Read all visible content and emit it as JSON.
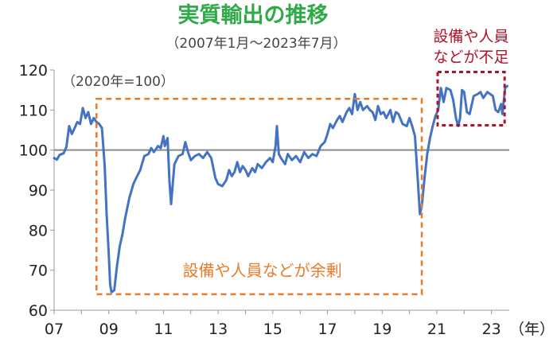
{
  "chart_data": {
    "type": "line",
    "title": "実質輸出の推移",
    "subtitle": "（2007年1月～2023年7月）",
    "base_note": "（2020年=100）",
    "xlabel": "（年）",
    "ylabel": "",
    "ylim": [
      60,
      120
    ],
    "xlim": [
      2007.0,
      2023.65
    ],
    "y_ticks": [
      "60",
      "70",
      "80",
      "90",
      "100",
      "110",
      "120"
    ],
    "x_ticks": [
      "07",
      "09",
      "11",
      "13",
      "15",
      "17",
      "19",
      "21",
      "23"
    ],
    "reference_line": 100,
    "grid": false,
    "legend": "none",
    "series": [
      {
        "color": "#4472c4",
        "points": [
          [
            2007.0,
            98.0
          ],
          [
            2007.1,
            97.6
          ],
          [
            2007.2,
            98.8
          ],
          [
            2007.35,
            99.2
          ],
          [
            2007.45,
            100.8
          ],
          [
            2007.55,
            106.0
          ],
          [
            2007.65,
            104.0
          ],
          [
            2007.75,
            105.5
          ],
          [
            2007.85,
            107.0
          ],
          [
            2007.95,
            106.5
          ],
          [
            2008.05,
            110.5
          ],
          [
            2008.15,
            108.0
          ],
          [
            2008.25,
            109.5
          ],
          [
            2008.35,
            106.5
          ],
          [
            2008.45,
            108.0
          ],
          [
            2008.55,
            107.0
          ],
          [
            2008.65,
            106.5
          ],
          [
            2008.75,
            105.5
          ],
          [
            2008.85,
            96.0
          ],
          [
            2008.92,
            84.0
          ],
          [
            2009.0,
            74.0
          ],
          [
            2009.05,
            66.5
          ],
          [
            2009.1,
            64.5
          ],
          [
            2009.2,
            65.0
          ],
          [
            2009.3,
            71.0
          ],
          [
            2009.4,
            76.0
          ],
          [
            2009.5,
            79.0
          ],
          [
            2009.6,
            83.0
          ],
          [
            2009.75,
            88.0
          ],
          [
            2009.9,
            91.5
          ],
          [
            2010.0,
            93.0
          ],
          [
            2010.15,
            95.0
          ],
          [
            2010.3,
            98.5
          ],
          [
            2010.45,
            99.0
          ],
          [
            2010.55,
            100.5
          ],
          [
            2010.65,
            99.5
          ],
          [
            2010.8,
            101.0
          ],
          [
            2010.9,
            100.5
          ],
          [
            2011.0,
            103.5
          ],
          [
            2011.05,
            101.0
          ],
          [
            2011.15,
            103.0
          ],
          [
            2011.22,
            92.0
          ],
          [
            2011.28,
            86.5
          ],
          [
            2011.4,
            96.5
          ],
          [
            2011.55,
            98.5
          ],
          [
            2011.7,
            99.0
          ],
          [
            2011.8,
            102.0
          ],
          [
            2011.9,
            99.5
          ],
          [
            2012.0,
            97.5
          ],
          [
            2012.15,
            98.5
          ],
          [
            2012.3,
            99.0
          ],
          [
            2012.45,
            98.0
          ],
          [
            2012.6,
            99.5
          ],
          [
            2012.75,
            98.0
          ],
          [
            2012.9,
            93.0
          ],
          [
            2013.0,
            91.5
          ],
          [
            2013.15,
            91.0
          ],
          [
            2013.3,
            92.5
          ],
          [
            2013.4,
            95.0
          ],
          [
            2013.5,
            93.5
          ],
          [
            2013.6,
            94.5
          ],
          [
            2013.7,
            97.0
          ],
          [
            2013.8,
            94.5
          ],
          [
            2013.9,
            96.0
          ],
          [
            2014.0,
            95.0
          ],
          [
            2014.1,
            93.5
          ],
          [
            2014.25,
            95.5
          ],
          [
            2014.35,
            94.5
          ],
          [
            2014.45,
            96.5
          ],
          [
            2014.6,
            95.5
          ],
          [
            2014.75,
            97.0
          ],
          [
            2014.9,
            98.0
          ],
          [
            2015.0,
            97.0
          ],
          [
            2015.1,
            101.0
          ],
          [
            2015.15,
            106.0
          ],
          [
            2015.22,
            99.0
          ],
          [
            2015.3,
            98.0
          ],
          [
            2015.45,
            96.5
          ],
          [
            2015.55,
            99.0
          ],
          [
            2015.7,
            97.5
          ],
          [
            2015.85,
            98.5
          ],
          [
            2016.0,
            97.0
          ],
          [
            2016.15,
            99.5
          ],
          [
            2016.3,
            98.0
          ],
          [
            2016.45,
            99.0
          ],
          [
            2016.6,
            98.5
          ],
          [
            2016.75,
            101.0
          ],
          [
            2016.9,
            102.0
          ],
          [
            2017.0,
            104.0
          ],
          [
            2017.1,
            106.5
          ],
          [
            2017.2,
            105.5
          ],
          [
            2017.35,
            107.5
          ],
          [
            2017.45,
            108.5
          ],
          [
            2017.55,
            107.0
          ],
          [
            2017.7,
            109.5
          ],
          [
            2017.8,
            110.5
          ],
          [
            2017.9,
            109.0
          ],
          [
            2018.0,
            114.0
          ],
          [
            2018.1,
            110.0
          ],
          [
            2018.2,
            112.0
          ],
          [
            2018.3,
            110.0
          ],
          [
            2018.45,
            111.0
          ],
          [
            2018.55,
            110.0
          ],
          [
            2018.65,
            109.5
          ],
          [
            2018.75,
            107.5
          ],
          [
            2018.85,
            111.0
          ],
          [
            2018.95,
            109.0
          ],
          [
            2019.05,
            109.5
          ],
          [
            2019.15,
            108.0
          ],
          [
            2019.3,
            110.0
          ],
          [
            2019.4,
            107.0
          ],
          [
            2019.5,
            109.5
          ],
          [
            2019.6,
            109.0
          ],
          [
            2019.75,
            106.5
          ],
          [
            2019.9,
            106.0
          ],
          [
            2020.0,
            108.0
          ],
          [
            2020.1,
            106.0
          ],
          [
            2020.2,
            103.5
          ],
          [
            2020.3,
            93.0
          ],
          [
            2020.38,
            84.0
          ],
          [
            2020.45,
            86.0
          ],
          [
            2020.55,
            93.0
          ],
          [
            2020.65,
            99.0
          ],
          [
            2020.75,
            103.0
          ],
          [
            2020.85,
            106.0
          ],
          [
            2020.95,
            108.5
          ],
          [
            2021.05,
            110.0
          ],
          [
            2021.15,
            115.5
          ],
          [
            2021.25,
            112.0
          ],
          [
            2021.35,
            115.5
          ],
          [
            2021.5,
            115.0
          ],
          [
            2021.6,
            112.5
          ],
          [
            2021.7,
            108.0
          ],
          [
            2021.78,
            106.0
          ],
          [
            2021.85,
            108.0
          ],
          [
            2021.92,
            115.0
          ],
          [
            2022.0,
            114.5
          ],
          [
            2022.1,
            109.5
          ],
          [
            2022.2,
            109.0
          ],
          [
            2022.35,
            113.5
          ],
          [
            2022.5,
            114.0
          ],
          [
            2022.6,
            114.5
          ],
          [
            2022.7,
            113.0
          ],
          [
            2022.85,
            114.5
          ],
          [
            2022.95,
            114.0
          ],
          [
            2023.05,
            113.5
          ],
          [
            2023.15,
            110.0
          ],
          [
            2023.25,
            109.5
          ],
          [
            2023.35,
            111.5
          ],
          [
            2023.4,
            109.0
          ],
          [
            2023.5,
            115.5
          ],
          [
            2023.58,
            116.0
          ]
        ]
      }
    ],
    "annotations": [
      {
        "text": "設備や人員などが余剰",
        "color": "#e97b2a",
        "x_range": [
          2008.55,
          2020.45
        ],
        "y_range": [
          64.0,
          112.8
        ]
      },
      {
        "text_lines": [
          "設備や人員",
          "などが不足"
        ],
        "color": "#b0122a",
        "x_range": [
          2021.03,
          2023.48
        ],
        "y_range": [
          106.2,
          119.5
        ]
      }
    ]
  }
}
